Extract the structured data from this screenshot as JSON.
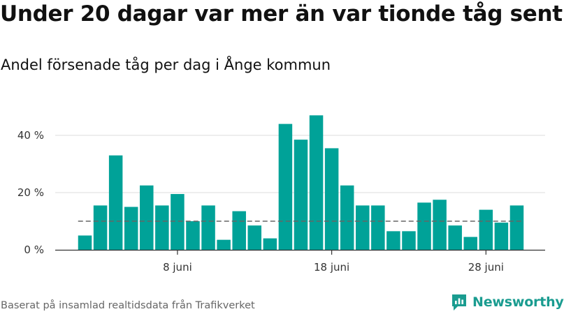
{
  "header": {
    "title": "Under 20 dagar var mer än var tionde tåg sent",
    "subtitle": "Andel försenade tåg per dag i Ånge kommun"
  },
  "footer": {
    "source": "Baserat på insamlad realtidsdata från Trafikverket",
    "brand": "Newsworthy"
  },
  "colors": {
    "bar": "#00a298",
    "reference_line": "#666666",
    "grid": "#dddddd",
    "brand": "#1a9c90"
  },
  "chart_data": {
    "type": "bar",
    "title": "Under 20 dagar var mer än var tionde tåg sent",
    "subtitle": "Andel försenade tåg per dag i Ånge kommun",
    "xlabel": "",
    "ylabel": "",
    "unit": "%",
    "x_start_day": 2,
    "x": [
      "2 juni",
      "3 juni",
      "4 juni",
      "5 juni",
      "6 juni",
      "7 juni",
      "8 juni",
      "9 juni",
      "10 juni",
      "11 juni",
      "12 juni",
      "13 juni",
      "14 juni",
      "15 juni",
      "16 juni",
      "17 juni",
      "18 juni",
      "19 juni",
      "20 juni",
      "21 juni",
      "22 juni",
      "23 juni",
      "24 juni",
      "25 juni",
      "26 juni",
      "27 juni",
      "28 juni",
      "29 juni",
      "30 juni"
    ],
    "values": [
      5,
      15.5,
      33,
      15,
      22.5,
      15.5,
      19.5,
      10,
      15.5,
      3.5,
      13.5,
      8.5,
      4,
      44,
      38.5,
      47,
      35.5,
      22.5,
      15.5,
      15.5,
      6.5,
      6.5,
      16.5,
      17.5,
      8.5,
      4.5,
      14,
      9.5,
      15.5
    ],
    "reference_line": {
      "value": 10,
      "style": "dashed"
    },
    "ylim": [
      0,
      50
    ],
    "y_ticks": [
      0,
      20,
      40
    ],
    "y_tick_labels": [
      "0 %",
      "20 %",
      "40 %"
    ],
    "x_ticks": [
      "8 juni",
      "18 juni",
      "28 juni"
    ],
    "grid": true
  }
}
